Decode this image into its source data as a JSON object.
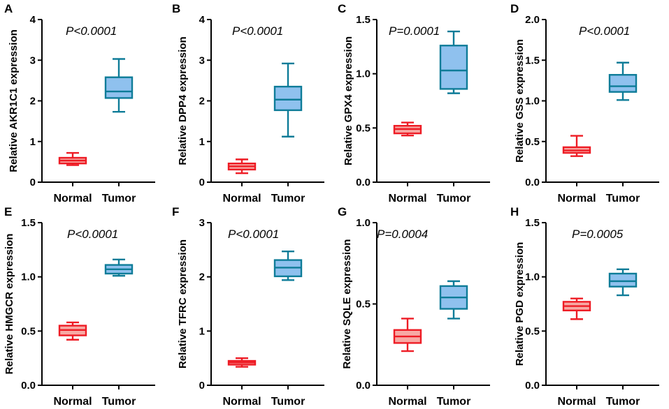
{
  "colors": {
    "normal_stroke": "#ee1c25",
    "normal_fill": "#f7a9a4",
    "tumor_stroke": "#0e7c98",
    "tumor_fill": "#8fc1ee",
    "axis": "#000000"
  },
  "chart_data": [
    {
      "type": "box",
      "panel": "A",
      "ylabel": "Relative AKR1C1 expression",
      "annotation": "P<0.0001",
      "categories": [
        "Normal",
        "Tumor"
      ],
      "ylim": [
        0,
        4
      ],
      "yticks": [
        0,
        1,
        2,
        3,
        4
      ],
      "ytick_labels": [
        "0",
        "1",
        "2",
        "3",
        "4"
      ],
      "boxes": [
        {
          "name": "Normal",
          "min": 0.42,
          "q1": 0.46,
          "median": 0.53,
          "q3": 0.6,
          "max": 0.72
        },
        {
          "name": "Tumor",
          "min": 1.73,
          "q1": 2.07,
          "median": 2.23,
          "q3": 2.58,
          "max": 3.03
        }
      ]
    },
    {
      "type": "box",
      "panel": "B",
      "ylabel": "Relative DPP4 expression",
      "annotation": "P<0.0001",
      "categories": [
        "Normal",
        "Tumor"
      ],
      "ylim": [
        0,
        4
      ],
      "yticks": [
        0,
        1,
        2,
        3,
        4
      ],
      "ytick_labels": [
        "0",
        "1",
        "2",
        "3",
        "4"
      ],
      "boxes": [
        {
          "name": "Normal",
          "min": 0.22,
          "q1": 0.31,
          "median": 0.39,
          "q3": 0.46,
          "max": 0.56
        },
        {
          "name": "Tumor",
          "min": 1.12,
          "q1": 1.77,
          "median": 2.03,
          "q3": 2.35,
          "max": 2.92
        }
      ]
    },
    {
      "type": "box",
      "panel": "C",
      "ylabel": "Relative GPX4 expression",
      "annotation": "P=0.0001",
      "categories": [
        "Normal",
        "Tumor"
      ],
      "ylim": [
        0,
        1.5
      ],
      "yticks": [
        0,
        0.5,
        1.0,
        1.5
      ],
      "ytick_labels": [
        "0.0",
        "0.5",
        "1.0",
        "1.5"
      ],
      "boxes": [
        {
          "name": "Normal",
          "min": 0.43,
          "q1": 0.45,
          "median": 0.49,
          "q3": 0.52,
          "max": 0.55
        },
        {
          "name": "Tumor",
          "min": 0.82,
          "q1": 0.86,
          "median": 1.03,
          "q3": 1.26,
          "max": 1.39
        }
      ]
    },
    {
      "type": "box",
      "panel": "D",
      "ylabel": "Relative GSS expression",
      "annotation": "P<0.0001",
      "categories": [
        "Normal",
        "Tumor"
      ],
      "ylim": [
        0,
        2.0
      ],
      "yticks": [
        0,
        0.5,
        1.0,
        1.5,
        2.0
      ],
      "ytick_labels": [
        "0.0",
        "0.5",
        "1.0",
        "1.5",
        "2.0"
      ],
      "boxes": [
        {
          "name": "Normal",
          "min": 0.32,
          "q1": 0.36,
          "median": 0.39,
          "q3": 0.43,
          "max": 0.57
        },
        {
          "name": "Tumor",
          "min": 1.01,
          "q1": 1.11,
          "median": 1.18,
          "q3": 1.32,
          "max": 1.47
        }
      ]
    },
    {
      "type": "box",
      "panel": "E",
      "ylabel": "Relative HMGCR expression",
      "annotation": "P<0.0001",
      "categories": [
        "Normal",
        "Tumor"
      ],
      "ylim": [
        0,
        1.5
      ],
      "yticks": [
        0,
        0.5,
        1.0,
        1.5
      ],
      "ytick_labels": [
        "0.0",
        "0.5",
        "1.0",
        "1.5"
      ],
      "boxes": [
        {
          "name": "Normal",
          "min": 0.42,
          "q1": 0.46,
          "median": 0.51,
          "q3": 0.55,
          "max": 0.58
        },
        {
          "name": "Tumor",
          "min": 1.01,
          "q1": 1.03,
          "median": 1.07,
          "q3": 1.11,
          "max": 1.16
        }
      ]
    },
    {
      "type": "box",
      "panel": "F",
      "ylabel": "Relative TFRC expression",
      "annotation": "P<0.0001",
      "categories": [
        "Normal",
        "Tumor"
      ],
      "ylim": [
        0,
        3
      ],
      "yticks": [
        0,
        1,
        2,
        3
      ],
      "ytick_labels": [
        "0",
        "1",
        "2",
        "3"
      ],
      "boxes": [
        {
          "name": "Normal",
          "min": 0.34,
          "q1": 0.38,
          "median": 0.42,
          "q3": 0.45,
          "max": 0.5
        },
        {
          "name": "Tumor",
          "min": 1.94,
          "q1": 2.01,
          "median": 2.17,
          "q3": 2.31,
          "max": 2.47
        }
      ]
    },
    {
      "type": "box",
      "panel": "G",
      "ylabel": "Relative SQLE expression",
      "annotation": "P=0.0004",
      "categories": [
        "Normal",
        "Tumor"
      ],
      "ylim": [
        0,
        1.0
      ],
      "yticks": [
        0,
        0.5,
        1.0
      ],
      "ytick_labels": [
        "0.0",
        "0.5",
        "1.0"
      ],
      "boxes": [
        {
          "name": "Normal",
          "min": 0.21,
          "q1": 0.26,
          "median": 0.3,
          "q3": 0.34,
          "max": 0.41
        },
        {
          "name": "Tumor",
          "min": 0.41,
          "q1": 0.47,
          "median": 0.54,
          "q3": 0.61,
          "max": 0.64
        }
      ]
    },
    {
      "type": "box",
      "panel": "H",
      "ylabel": "Relative PGD expression",
      "annotation": "P=0.0005",
      "categories": [
        "Normal",
        "Tumor"
      ],
      "ylim": [
        0,
        1.5
      ],
      "yticks": [
        0,
        0.5,
        1.0,
        1.5
      ],
      "ytick_labels": [
        "0.0",
        "0.5",
        "1.0",
        "1.5"
      ],
      "boxes": [
        {
          "name": "Normal",
          "min": 0.61,
          "q1": 0.69,
          "median": 0.73,
          "q3": 0.77,
          "max": 0.8
        },
        {
          "name": "Tumor",
          "min": 0.83,
          "q1": 0.91,
          "median": 0.96,
          "q3": 1.03,
          "max": 1.07
        }
      ]
    }
  ]
}
